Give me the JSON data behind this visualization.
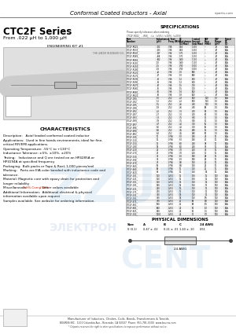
{
  "title_main": "Conformal Coated Inductors - Axial",
  "website": "ciparts.com",
  "series_title": "CTC2F Series",
  "series_subtitle": "From .022 μH to 1,000 μH",
  "eng_kit": "ENGINEERING KIT #1",
  "spec_title": "SPECIFICATIONS",
  "spec_note": "Please specify tolerance when ordering\nCTC2F-R022_  , -R68_  , i.e.  (±5%), (±10%), (±20%)",
  "spec_headers": [
    "Part\nNumber",
    "Inductance\n(μH)",
    "L Test\nFreq\n(MHz)",
    "DC\nResistance\n(Ω Max)",
    "I rated\nCurrent\n(mA Max)",
    "SRF\nFreq\n(MHz)",
    "OAF\nRange\n(μH)",
    "Rated\nDC\n(V)"
  ],
  "spec_rows": [
    [
      "CTC2F-R022_",
      ".022",
      "7.96",
      "0.63",
      "1,300",
      "---",
      ".47",
      "60A"
    ],
    [
      "CTC2F-R033_",
      ".033",
      "7.96",
      "0.63",
      "1,300",
      "---",
      ".47",
      "60A"
    ],
    [
      "CTC2F-R047_",
      ".047",
      "7.96",
      "0.71",
      "1,200",
      "---",
      ".47",
      "60A"
    ],
    [
      "CTC2F-R068_",
      ".068",
      "7.96",
      "0.71",
      "1,200",
      "---",
      ".47",
      "60A"
    ],
    [
      "CTC2F-R082_",
      ".082",
      "7.96",
      "0.80",
      "1,100",
      "---",
      ".47",
      "60A"
    ],
    [
      "CTC2F-R100_",
      ".10",
      "7.96",
      "0.80",
      "1,100",
      "---",
      ".47",
      "60A"
    ],
    [
      "CTC2F-R150_",
      ".15",
      "7.96",
      "0.90",
      "1,000",
      "---",
      ".47",
      "60A"
    ],
    [
      "CTC2F-R180_",
      ".18",
      "7.96",
      "0.90",
      "1,000",
      "---",
      ".47",
      "60A"
    ],
    [
      "CTC2F-R220_",
      ".22",
      "7.96",
      "1.0",
      "900",
      "---",
      ".47",
      "60A"
    ],
    [
      "CTC2F-R270_",
      ".27",
      "7.96",
      "1.0",
      "900",
      "---",
      ".47",
      "60A"
    ],
    [
      "CTC2F-R330_",
      ".33",
      "7.96",
      "1.2",
      "800",
      "---",
      ".47",
      "60A"
    ],
    [
      "CTC2F-R390_",
      ".39",
      "7.96",
      "1.2",
      "800",
      "---",
      ".47",
      "60A"
    ],
    [
      "CTC2F-R470_",
      ".47",
      "7.96",
      "1.5",
      "700",
      "---",
      ".47",
      "60A"
    ],
    [
      "CTC2F-R560_",
      ".56",
      "7.96",
      "1.5",
      "700",
      "---",
      ".47",
      "60A"
    ],
    [
      "CTC2F-R680_",
      ".68",
      "7.96",
      "1.8",
      "600",
      "---",
      ".47",
      "60A"
    ],
    [
      "CTC2F-R820_",
      ".82",
      "7.96",
      "1.8",
      "600",
      "---",
      ".47",
      "60A"
    ],
    [
      "CTC2F-1R0_",
      "1.0",
      "2.52",
      "2.2",
      "500",
      "100",
      "1.0",
      "60A"
    ],
    [
      "CTC2F-1R2_",
      "1.2",
      "2.52",
      "2.2",
      "500",
      "100",
      "1.0",
      "60A"
    ],
    [
      "CTC2F-1R5_",
      "1.5",
      "2.52",
      "2.6",
      "450",
      "100",
      "1.0",
      "60A"
    ],
    [
      "CTC2F-1R8_",
      "1.8",
      "2.52",
      "2.6",
      "450",
      "90",
      "1.0",
      "60A"
    ],
    [
      "CTC2F-2R2_",
      "2.2",
      "2.52",
      "3.0",
      "400",
      "85",
      "1.0",
      "60A"
    ],
    [
      "CTC2F-2R7_",
      "2.7",
      "2.52",
      "3.0",
      "400",
      "80",
      "1.0",
      "60A"
    ],
    [
      "CTC2F-3R3_",
      "3.3",
      "2.52",
      "3.5",
      "350",
      "75",
      "1.0",
      "60A"
    ],
    [
      "CTC2F-3R9_",
      "3.9",
      "2.52",
      "3.5",
      "350",
      "70",
      "1.0",
      "60A"
    ],
    [
      "CTC2F-4R7_",
      "4.7",
      "2.52",
      "4.0",
      "300",
      "65",
      "1.0",
      "60A"
    ],
    [
      "CTC2F-5R6_",
      "5.6",
      "2.52",
      "4.0",
      "300",
      "60",
      "1.0",
      "60A"
    ],
    [
      "CTC2F-6R8_",
      "6.8",
      "2.52",
      "4.5",
      "280",
      "55",
      "1.0",
      "60A"
    ],
    [
      "CTC2F-8R2_",
      "8.2",
      "2.52",
      "4.5",
      "280",
      "50",
      "1.0",
      "60A"
    ],
    [
      "CTC2F-100_",
      "10",
      "0.796",
      "5.0",
      "250",
      "45",
      "10",
      "60A"
    ],
    [
      "CTC2F-120_",
      "12",
      "0.796",
      "5.0",
      "250",
      "40",
      "10",
      "60A"
    ],
    [
      "CTC2F-150_",
      "15",
      "0.796",
      "6.0",
      "220",
      "38",
      "10",
      "60A"
    ],
    [
      "CTC2F-180_",
      "18",
      "0.796",
      "6.0",
      "220",
      "35",
      "10",
      "60A"
    ],
    [
      "CTC2F-220_",
      "22",
      "0.796",
      "7.0",
      "200",
      "32",
      "10",
      "60A"
    ],
    [
      "CTC2F-270_",
      "27",
      "0.796",
      "7.0",
      "200",
      "30",
      "10",
      "60A"
    ],
    [
      "CTC2F-330_",
      "33",
      "0.796",
      "8.0",
      "180",
      "28",
      "10",
      "60A"
    ],
    [
      "CTC2F-390_",
      "39",
      "0.796",
      "8.0",
      "180",
      "26",
      "10",
      "60A"
    ],
    [
      "CTC2F-470_",
      "47",
      "0.796",
      "9.0",
      "160",
      "24",
      "10",
      "60A"
    ],
    [
      "CTC2F-560_",
      "56",
      "0.796",
      "9.0",
      "160",
      "22",
      "10",
      "60A"
    ],
    [
      "CTC2F-680_",
      "68",
      "0.796",
      "10",
      "150",
      "20",
      "10",
      "60A"
    ],
    [
      "CTC2F-820_",
      "82",
      "0.796",
      "10",
      "150",
      "18",
      "10",
      "60A"
    ],
    [
      "CTC2F-101_",
      "100",
      "0.252",
      "12",
      "130",
      "16",
      "100",
      "60A"
    ],
    [
      "CTC2F-121_",
      "120",
      "0.252",
      "12",
      "130",
      "15",
      "100",
      "60A"
    ],
    [
      "CTC2F-151_",
      "150",
      "0.252",
      "14",
      "120",
      "14",
      "100",
      "60A"
    ],
    [
      "CTC2F-181_",
      "180",
      "0.252",
      "14",
      "120",
      "13",
      "100",
      "60A"
    ],
    [
      "CTC2F-221_",
      "220",
      "0.252",
      "16",
      "110",
      "12",
      "100",
      "60A"
    ],
    [
      "CTC2F-271_",
      "270",
      "0.252",
      "16",
      "110",
      "11",
      "100",
      "60A"
    ],
    [
      "CTC2F-331_",
      "330",
      "0.252",
      "18",
      "100",
      "10",
      "100",
      "60A"
    ],
    [
      "CTC2F-391_",
      "390",
      "0.252",
      "18",
      "100",
      "9.5",
      "100",
      "60A"
    ],
    [
      "CTC2F-471_",
      "470",
      "0.252",
      "20",
      "90",
      "9.0",
      "100",
      "60A"
    ],
    [
      "CTC2F-561_",
      "560",
      "0.252",
      "20",
      "90",
      "8.5",
      "100",
      "60A"
    ],
    [
      "CTC2F-681_",
      "680",
      "0.252",
      "22",
      "80",
      "8.0",
      "100",
      "60A"
    ],
    [
      "CTC2F-821_",
      "820",
      "0.252",
      "22",
      "80",
      "7.5",
      "100",
      "60A"
    ],
    [
      "CTC2F-102_",
      "1000",
      "0.252",
      "24",
      "70",
      "7.0",
      "100",
      "60A"
    ]
  ],
  "char_title": "CHARACTERISTICS",
  "char_lines": [
    [
      "Description:   Axial leaded conformal coated inductor",
      false
    ],
    [
      "Applications:  Used in fine hands environments, ideal for fine,",
      false
    ],
    [
      "critical RFI/EMI applications.",
      false
    ],
    [
      "Operating Temperature: -55°C to +130°C",
      false
    ],
    [
      "Inductance Tolerance: ±5%, ±10%, ±20%",
      false
    ],
    [
      "Testing:   Inductance and Q are tested on an HP4285A or",
      false
    ],
    [
      "HP4194A at specified frequency",
      false
    ],
    [
      "Packaging:  Bulk packs or Tape & Reel, 1,000 pieces/reel",
      false
    ],
    [
      "Marking:   Parts are EIA color banded with inductance code and",
      false
    ],
    [
      "tolerance.",
      false
    ],
    [
      "Material: Magnetic core with epoxy drain for protection and",
      false
    ],
    [
      "longer reliability",
      false
    ],
    [
      "Miscellaneous: |RoHS-Compliant|; Other values available",
      true
    ],
    [
      "Additional Information:  Additional electrical & physical",
      false
    ],
    [
      "information available upon request",
      false
    ],
    [
      "Samples available. See website for ordering information.",
      false
    ]
  ],
  "phys_dim_title": "PHYSICAL DIMENSIONS",
  "phys_dim_headers": [
    "Size",
    "A",
    "B",
    "C",
    "24 AWG"
  ],
  "phys_dim_row": [
    "0 (0.1)",
    "0.47 ± .02",
    "0.21 ± .01",
    "1.40 ± .10",
    "0.51"
  ],
  "manufacturer": "Manufacturer of Inductors, Chokes, Coils, Beads, Transformers & Toroids",
  "address": "BOURNS INC.  1200 Columbia Ave., Riverside, CA 92507  Phone: 951-781-5500  www.bourns.com",
  "disclaimer": "* Citiparts reserves the right to alter specifications to improve performance without notice.",
  "bg_color": "#ffffff",
  "text_red": "#cc2200",
  "watermark1": "ZZUN",
  "watermark2": "ЭЛЕКТРОН",
  "watermark3": "CENT"
}
